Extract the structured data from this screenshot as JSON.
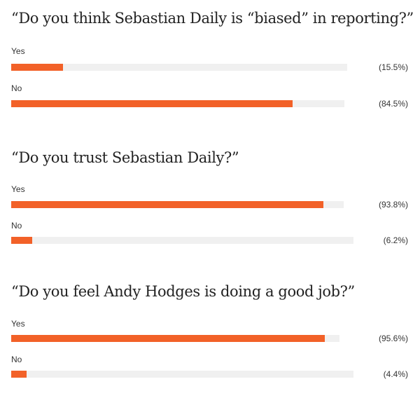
{
  "colors": {
    "fill": "#f26128",
    "track": "#f0f0f0"
  },
  "chart_data": [
    {
      "type": "bar",
      "title": "“Do you think Sebastian Daily is “biased” in reporting?”",
      "categories": [
        "Yes",
        "No"
      ],
      "values": [
        15.5,
        84.5
      ],
      "value_labels": [
        "(15.5%)",
        "(84.5%)"
      ]
    },
    {
      "type": "bar",
      "title": "“Do you trust Sebastian Daily?”",
      "categories": [
        "Yes",
        "No"
      ],
      "values": [
        93.8,
        6.2
      ],
      "value_labels": [
        "(93.8%)",
        "(6.2%)"
      ]
    },
    {
      "type": "bar",
      "title": "“Do you feel Andy Hodges is doing a good job?”",
      "categories": [
        "Yes",
        "No"
      ],
      "values": [
        95.6,
        4.4
      ],
      "value_labels": [
        "(95.6%)",
        "(4.4%)"
      ]
    }
  ]
}
